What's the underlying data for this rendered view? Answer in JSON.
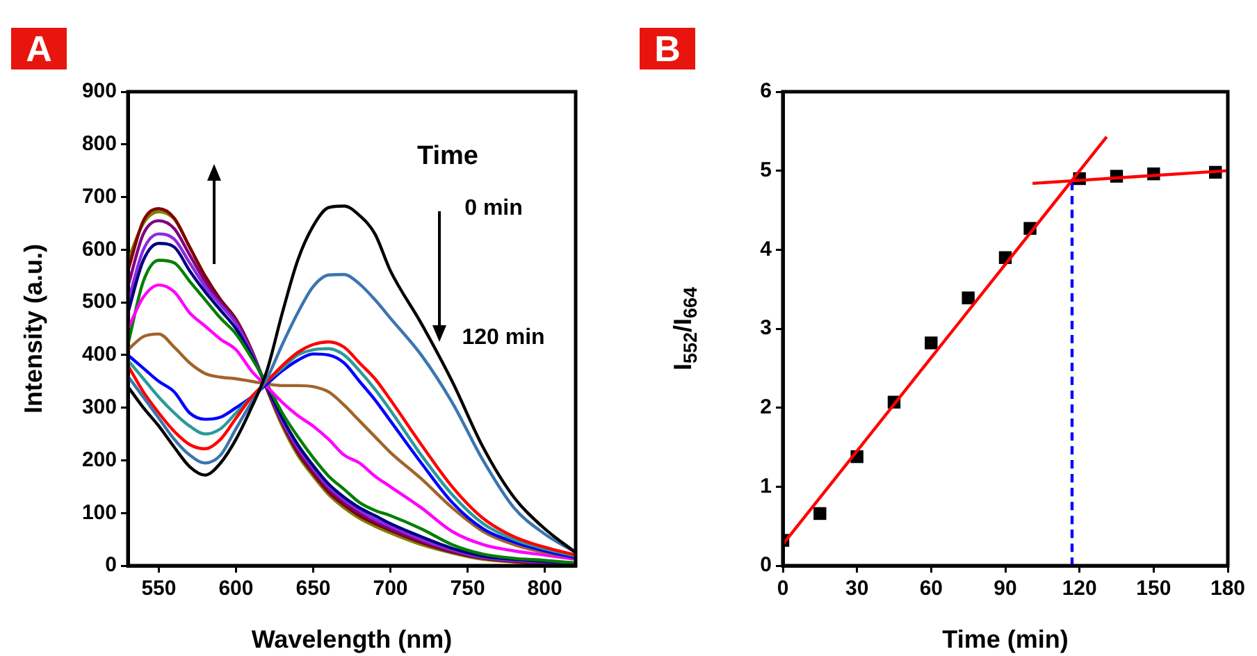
{
  "chart_data": [
    {
      "type": "line",
      "title": "A",
      "xlabel": "Wavelength (nm)",
      "ylabel": "Intensity (a.u.)",
      "marker": "none",
      "annotations": [
        "Time",
        "0 min",
        "120 min"
      ],
      "x": [
        530,
        540,
        550,
        560,
        570,
        580,
        590,
        600,
        610,
        620,
        630,
        640,
        650,
        660,
        670,
        680,
        690,
        700,
        720,
        740,
        760,
        780,
        800,
        820
      ],
      "xlim": [
        530,
        820
      ],
      "xticks": [
        550,
        600,
        650,
        700,
        750,
        800
      ],
      "ylim": [
        0,
        900
      ],
      "yticks": [
        0,
        100,
        200,
        300,
        400,
        500,
        600,
        700,
        800,
        900
      ],
      "series": [
        {
          "color": "#000000",
          "values": [
            340,
            300,
            265,
            225,
            188,
            172,
            195,
            240,
            300,
            370,
            480,
            580,
            645,
            680,
            683,
            665,
            630,
            560,
            460,
            350,
            225,
            130,
            70,
            25
          ]
        },
        {
          "color": "#3a75b0",
          "values": [
            360,
            320,
            280,
            240,
            210,
            195,
            210,
            260,
            310,
            355,
            420,
            480,
            530,
            552,
            553,
            535,
            505,
            470,
            400,
            310,
            200,
            110,
            60,
            25
          ]
        },
        {
          "color": "#ff0000",
          "values": [
            380,
            330,
            290,
            255,
            230,
            222,
            240,
            280,
            320,
            350,
            380,
            405,
            420,
            425,
            415,
            385,
            355,
            315,
            230,
            150,
            90,
            55,
            35,
            20
          ]
        },
        {
          "color": "#2a9a9a",
          "values": [
            390,
            355,
            320,
            290,
            265,
            250,
            260,
            290,
            320,
            350,
            375,
            400,
            410,
            412,
            400,
            370,
            335,
            295,
            210,
            135,
            80,
            50,
            32,
            18
          ]
        },
        {
          "color": "#0000ff",
          "values": [
            400,
            375,
            350,
            330,
            290,
            278,
            282,
            300,
            320,
            345,
            370,
            390,
            402,
            400,
            385,
            350,
            315,
            275,
            195,
            120,
            70,
            45,
            28,
            15
          ]
        },
        {
          "color": "#a0642a",
          "values": [
            410,
            435,
            440,
            415,
            385,
            365,
            358,
            355,
            350,
            345,
            342,
            342,
            340,
            330,
            305,
            275,
            245,
            215,
            165,
            110,
            65,
            40,
            25,
            15
          ]
        },
        {
          "color": "#ff00ff",
          "values": [
            450,
            510,
            533,
            520,
            480,
            455,
            430,
            410,
            370,
            340,
            310,
            285,
            265,
            240,
            210,
            195,
            170,
            150,
            110,
            65,
            40,
            28,
            20,
            12
          ]
        },
        {
          "color": "#008000",
          "values": [
            420,
            540,
            580,
            575,
            540,
            505,
            470,
            440,
            395,
            345,
            290,
            245,
            205,
            170,
            145,
            120,
            105,
            95,
            70,
            40,
            22,
            14,
            10,
            5
          ]
        },
        {
          "color": "#000080",
          "values": [
            480,
            580,
            612,
            605,
            560,
            520,
            485,
            450,
            400,
            340,
            280,
            230,
            190,
            155,
            130,
            110,
            95,
            80,
            55,
            33,
            18,
            12,
            8,
            5
          ]
        },
        {
          "color": "#8a2be2",
          "values": [
            500,
            600,
            630,
            620,
            575,
            530,
            495,
            460,
            405,
            340,
            275,
            225,
            185,
            150,
            125,
            105,
            88,
            75,
            50,
            30,
            16,
            10,
            7,
            4
          ]
        },
        {
          "color": "#800080",
          "values": [
            530,
            630,
            655,
            640,
            590,
            540,
            500,
            465,
            408,
            338,
            272,
            220,
            180,
            145,
            120,
            100,
            84,
            70,
            47,
            28,
            15,
            9,
            6,
            3
          ]
        },
        {
          "color": "#800000",
          "values": [
            560,
            655,
            678,
            660,
            605,
            550,
            505,
            468,
            410,
            336,
            270,
            215,
            175,
            140,
            115,
            95,
            80,
            67,
            44,
            26,
            14,
            8,
            5,
            3
          ]
        },
        {
          "color": "#808000",
          "values": [
            580,
            650,
            672,
            658,
            605,
            550,
            505,
            468,
            410,
            335,
            265,
            210,
            170,
            135,
            110,
            90,
            75,
            62,
            40,
            24,
            12,
            7,
            4,
            2
          ]
        }
      ]
    },
    {
      "type": "scatter",
      "title": "B",
      "xlabel": "Time (min)",
      "ylabel": "I$_{552}$/I$_{664}$",
      "xlim": [
        0,
        180
      ],
      "xticks": [
        0,
        30,
        60,
        90,
        120,
        150,
        180
      ],
      "ylim": [
        0,
        6
      ],
      "yticks": [
        0,
        1,
        2,
        3,
        4,
        5,
        6
      ],
      "series": [
        {
          "type": "scatter",
          "marker": "square",
          "color": "#000000",
          "x": [
            0,
            15,
            30,
            45,
            60,
            75,
            90,
            100,
            120,
            135,
            150,
            175
          ],
          "values": [
            0.32,
            0.66,
            1.38,
            2.07,
            2.82,
            3.39,
            3.9,
            4.27,
            4.9,
            4.93,
            4.96,
            4.98
          ]
        },
        {
          "type": "line",
          "marker": "none",
          "color": "#ff0000",
          "x": [
            0,
            131
          ],
          "values": [
            0.27,
            5.43
          ]
        },
        {
          "type": "line",
          "marker": "none",
          "color": "#ff0000",
          "x": [
            101,
            180
          ],
          "values": [
            4.84,
            5.0
          ]
        },
        {
          "type": "line",
          "marker": "none",
          "line_style": "dashed",
          "color": "#0000ff",
          "x": [
            117,
            117
          ],
          "values": [
            0,
            4.9
          ]
        }
      ]
    }
  ]
}
